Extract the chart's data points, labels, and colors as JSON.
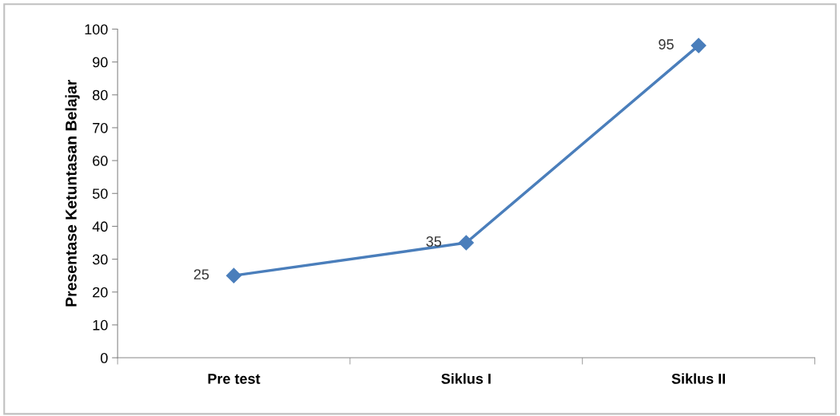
{
  "chart_data": {
    "type": "line",
    "ylabel": "Presentase Ketuntasan Belajar",
    "categories": [
      "Pre test",
      "Siklus I",
      "Siklus II"
    ],
    "series": [
      {
        "color": "#4a7ebb",
        "values": [
          25,
          35,
          95
        ]
      }
    ],
    "ylim": [
      0,
      100
    ],
    "yticks": [
      0,
      10,
      20,
      30,
      40,
      50,
      60,
      70,
      80,
      90,
      100
    ],
    "data_labels": true,
    "marker": "diamond",
    "grid": false,
    "legend": false
  }
}
